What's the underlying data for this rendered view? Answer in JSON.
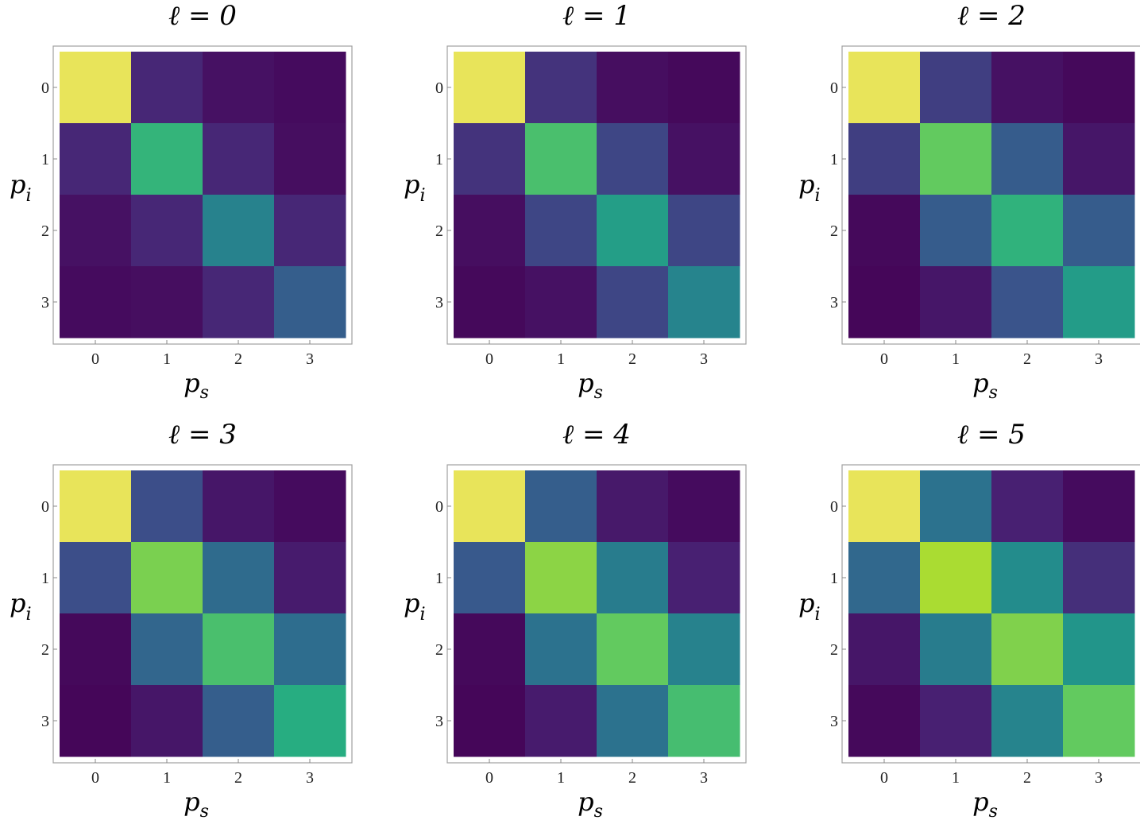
{
  "chart_data": [
    {
      "type": "heatmap",
      "title": "ℓ = 0",
      "xlabel": "p",
      "xlabel_sub": "s",
      "ylabel": "p",
      "ylabel_sub": "i",
      "x_ticks": [
        "0",
        "1",
        "2",
        "3"
      ],
      "y_ticks": [
        "0",
        "1",
        "2",
        "3"
      ],
      "values": [
        [
          1.0,
          0.14,
          0.06,
          0.04
        ],
        [
          0.14,
          0.66,
          0.14,
          0.05
        ],
        [
          0.06,
          0.14,
          0.44,
          0.14
        ],
        [
          0.04,
          0.05,
          0.14,
          0.3
        ]
      ]
    },
    {
      "type": "heatmap",
      "title": "ℓ = 1",
      "xlabel": "p",
      "xlabel_sub": "s",
      "ylabel": "p",
      "ylabel_sub": "i",
      "x_ticks": [
        "0",
        "1",
        "2",
        "3"
      ],
      "y_ticks": [
        "0",
        "1",
        "2",
        "3"
      ],
      "values": [
        [
          1.0,
          0.17,
          0.05,
          0.03
        ],
        [
          0.17,
          0.71,
          0.22,
          0.06
        ],
        [
          0.05,
          0.22,
          0.56,
          0.22
        ],
        [
          0.03,
          0.06,
          0.22,
          0.45
        ]
      ]
    },
    {
      "type": "heatmap",
      "title": "ℓ = 2",
      "xlabel": "p",
      "xlabel_sub": "s",
      "ylabel": "p",
      "ylabel_sub": "i",
      "x_ticks": [
        "0",
        "1",
        "2",
        "3"
      ],
      "y_ticks": [
        "0",
        "1",
        "2",
        "3"
      ],
      "values": [
        [
          1.0,
          0.2,
          0.06,
          0.03
        ],
        [
          0.2,
          0.76,
          0.29,
          0.08
        ],
        [
          0.03,
          0.29,
          0.65,
          0.29
        ],
        [
          0.02,
          0.08,
          0.26,
          0.55
        ]
      ]
    },
    {
      "type": "heatmap",
      "title": "ℓ = 3",
      "xlabel": "p",
      "xlabel_sub": "s",
      "ylabel": "p",
      "ylabel_sub": "i",
      "x_ticks": [
        "0",
        "1",
        "2",
        "3"
      ],
      "y_ticks": [
        "0",
        "1",
        "2",
        "3"
      ],
      "values": [
        [
          1.0,
          0.24,
          0.08,
          0.04
        ],
        [
          0.24,
          0.8,
          0.35,
          0.1
        ],
        [
          0.03,
          0.33,
          0.71,
          0.36
        ],
        [
          0.02,
          0.08,
          0.3,
          0.63
        ]
      ]
    },
    {
      "type": "heatmap",
      "title": "ℓ = 4",
      "xlabel": "p",
      "xlabel_sub": "s",
      "ylabel": "p",
      "ylabel_sub": "i",
      "x_ticks": [
        "0",
        "1",
        "2",
        "3"
      ],
      "y_ticks": [
        "0",
        "1",
        "2",
        "3"
      ],
      "values": [
        [
          1.0,
          0.3,
          0.09,
          0.04
        ],
        [
          0.28,
          0.83,
          0.42,
          0.12
        ],
        [
          0.03,
          0.38,
          0.76,
          0.44
        ],
        [
          0.02,
          0.1,
          0.38,
          0.7
        ]
      ]
    },
    {
      "type": "heatmap",
      "title": "ℓ = 5",
      "xlabel": "p",
      "xlabel_sub": "s",
      "ylabel": "p",
      "ylabel_sub": "i",
      "x_ticks": [
        "0",
        "1",
        "2",
        "3"
      ],
      "y_ticks": [
        "0",
        "1",
        "2",
        "3"
      ],
      "values": [
        [
          1.0,
          0.38,
          0.12,
          0.04
        ],
        [
          0.34,
          0.88,
          0.48,
          0.16
        ],
        [
          0.08,
          0.42,
          0.81,
          0.52
        ],
        [
          0.03,
          0.12,
          0.45,
          0.76
        ]
      ]
    }
  ],
  "colors": {
    "scale": "viridis",
    "frame": "#a0a0a0",
    "tick_mark": "#888888"
  }
}
